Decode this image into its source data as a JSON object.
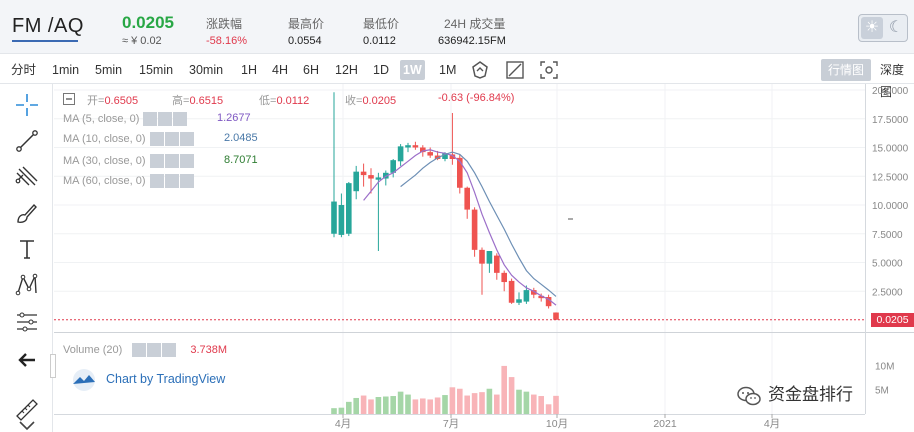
{
  "ticker": {
    "pair": "FM /AQ",
    "last_price": "0.0205",
    "cny_price": "≈ ¥ 0.02",
    "change_label": "涨跌幅",
    "change_value": "-58.16%",
    "high_label": "最高价",
    "high_value": "0.0554",
    "low_label": "最低价",
    "low_value": "0.0112",
    "volume_label": "24H 成交量",
    "volume_value": "636942.15FM",
    "theme_light_icon": "sun-icon",
    "theme_dark_icon": "moon-icon"
  },
  "toolbar": {
    "intervals": [
      "分时",
      "1min",
      "5min",
      "15min",
      "30min",
      "1H",
      "4H",
      "6H",
      "12H",
      "1D",
      "1W",
      "1M"
    ],
    "active_interval": "1W",
    "tools": [
      "indicator-icon",
      "compare-icon",
      "screenshot-icon"
    ],
    "right_tabs": [
      "行情图",
      "深度图"
    ],
    "active_right_tab": "行情图"
  },
  "drawing_tools": [
    "crosshair-icon",
    "trend-line-icon",
    "pitchfork-icon",
    "brush-icon",
    "text-icon",
    "pattern-icon",
    "measure-icon",
    "back-arrow-icon",
    "ruler-icon"
  ],
  "legend": {
    "open_label": "开=",
    "open_value": "0.6505",
    "high_label": "高=",
    "high_value": "0.6515",
    "low_label": "低=",
    "low_value": "0.0112",
    "close_label": "收=",
    "close_value": "0.0205",
    "change": "-0.63",
    "change_pct": "(-96.84%)",
    "ma": [
      {
        "label": "MA (5, close, 0)",
        "value": "1.2677",
        "color": "#7e57c2"
      },
      {
        "label": "MA (10, close, 0)",
        "value": "2.0485",
        "color": "#4a79a8"
      },
      {
        "label": "MA (30, close, 0)",
        "value": "8.7071",
        "color": "#2e7d32"
      },
      {
        "label": "MA (60, close, 0)",
        "value": "",
        "color": "#999999"
      }
    ],
    "volume_label": "Volume (20)",
    "volume_value": "3.738M"
  },
  "colors": {
    "up": "#26a69a",
    "down": "#ef5350",
    "up_vol": "#a5d6a7",
    "down_vol": "#f8b4b8"
  },
  "branding": {
    "tradingview": "Chart by TradingView",
    "watermark": "资金盘排行"
  },
  "chart_data": {
    "type": "candlestick",
    "price_axis": [
      "20.0000",
      "17.5000",
      "15.0000",
      "12.5000",
      "10.0000",
      "7.5000",
      "5.0000",
      "2.5000",
      "0.0205"
    ],
    "price_ticks": [
      20,
      17.5,
      15,
      12.5,
      10,
      7.5,
      5,
      2.5
    ],
    "ylim": [
      0,
      20
    ],
    "volume_axis": [
      "10M",
      "5M"
    ],
    "volume_ticks": [
      10,
      5
    ],
    "vol_ylim": [
      0,
      14
    ],
    "x_labels": [
      "4月",
      "7月",
      "10月",
      "2021",
      "4月"
    ],
    "last_price": 0.0205,
    "candles": [
      {
        "o": 7.5,
        "h": 19.8,
        "l": 7.2,
        "c": 10.3
      },
      {
        "o": 7.4,
        "h": 11.0,
        "l": 7.2,
        "c": 10.0
      },
      {
        "o": 7.5,
        "h": 12.0,
        "l": 7.3,
        "c": 11.9
      },
      {
        "o": 11.2,
        "h": 13.4,
        "l": 10.5,
        "c": 12.9
      },
      {
        "o": 12.9,
        "h": 13.6,
        "l": 11.6,
        "c": 12.6
      },
      {
        "o": 12.6,
        "h": 13.2,
        "l": 11.0,
        "c": 12.3
      },
      {
        "o": 12.2,
        "h": 12.8,
        "l": 6.0,
        "c": 12.4
      },
      {
        "o": 12.3,
        "h": 13.0,
        "l": 11.7,
        "c": 12.8
      },
      {
        "o": 12.8,
        "h": 14.0,
        "l": 12.4,
        "c": 13.9
      },
      {
        "o": 13.8,
        "h": 15.3,
        "l": 13.4,
        "c": 15.1
      },
      {
        "o": 15.0,
        "h": 15.4,
        "l": 14.6,
        "c": 15.2
      },
      {
        "o": 15.2,
        "h": 15.5,
        "l": 14.8,
        "c": 15.0
      },
      {
        "o": 15.0,
        "h": 15.2,
        "l": 14.2,
        "c": 14.6
      },
      {
        "o": 14.6,
        "h": 15.0,
        "l": 14.1,
        "c": 14.3
      },
      {
        "o": 14.3,
        "h": 14.7,
        "l": 13.9,
        "c": 14.0
      },
      {
        "o": 14.0,
        "h": 14.6,
        "l": 13.8,
        "c": 14.5
      },
      {
        "o": 14.4,
        "h": 18.0,
        "l": 13.5,
        "c": 14.0
      },
      {
        "o": 14.1,
        "h": 14.4,
        "l": 11.0,
        "c": 11.5
      },
      {
        "o": 11.5,
        "h": 11.6,
        "l": 8.8,
        "c": 9.6
      },
      {
        "o": 9.6,
        "h": 9.8,
        "l": 5.5,
        "c": 6.1
      },
      {
        "o": 6.1,
        "h": 6.3,
        "l": 2.2,
        "c": 4.9
      },
      {
        "o": 4.9,
        "h": 6.0,
        "l": 4.1,
        "c": 6.0
      },
      {
        "o": 5.6,
        "h": 5.8,
        "l": 3.5,
        "c": 4.1
      },
      {
        "o": 4.1,
        "h": 4.3,
        "l": 2.5,
        "c": 3.3
      },
      {
        "o": 3.4,
        "h": 3.6,
        "l": 1.4,
        "c": 1.5
      },
      {
        "o": 1.5,
        "h": 2.4,
        "l": 1.3,
        "c": 1.8
      },
      {
        "o": 1.6,
        "h": 3.0,
        "l": 1.4,
        "c": 2.6
      },
      {
        "o": 2.6,
        "h": 2.8,
        "l": 1.9,
        "c": 2.2
      },
      {
        "o": 2.1,
        "h": 2.3,
        "l": 1.6,
        "c": 1.9
      },
      {
        "o": 2.0,
        "h": 2.2,
        "l": 1.0,
        "c": 1.2
      },
      {
        "o": 0.65,
        "h": 0.66,
        "l": 0.01,
        "c": 0.02
      }
    ],
    "ma5": [
      null,
      null,
      null,
      null,
      10.4,
      11.2,
      12.0,
      12.5,
      12.8,
      13.3,
      13.8,
      14.3,
      14.7,
      14.8,
      14.6,
      14.5,
      14.3,
      13.8,
      12.8,
      11.1,
      9.2,
      7.6,
      6.1,
      4.8,
      3.9,
      3.3,
      2.8,
      2.5,
      2.1,
      1.8,
      1.3
    ],
    "ma10": [
      null,
      null,
      null,
      null,
      null,
      null,
      null,
      null,
      null,
      11.6,
      12.1,
      12.6,
      13.2,
      13.7,
      14.1,
      14.4,
      14.6,
      14.4,
      13.8,
      12.8,
      11.6,
      10.3,
      9.1,
      7.9,
      6.6,
      5.4,
      4.3,
      3.6,
      3.1,
      2.6,
      2.05
    ],
    "volume": [
      1.2,
      1.3,
      2.5,
      3.3,
      3.8,
      3.0,
      3.5,
      3.6,
      3.7,
      4.6,
      4.0,
      3.0,
      3.2,
      3.0,
      3.4,
      3.9,
      5.5,
      5.2,
      3.8,
      4.3,
      4.5,
      5.2,
      4.0,
      9.9,
      7.6,
      5.0,
      4.6,
      4.0,
      3.7,
      2.0,
      3.738
    ]
  }
}
